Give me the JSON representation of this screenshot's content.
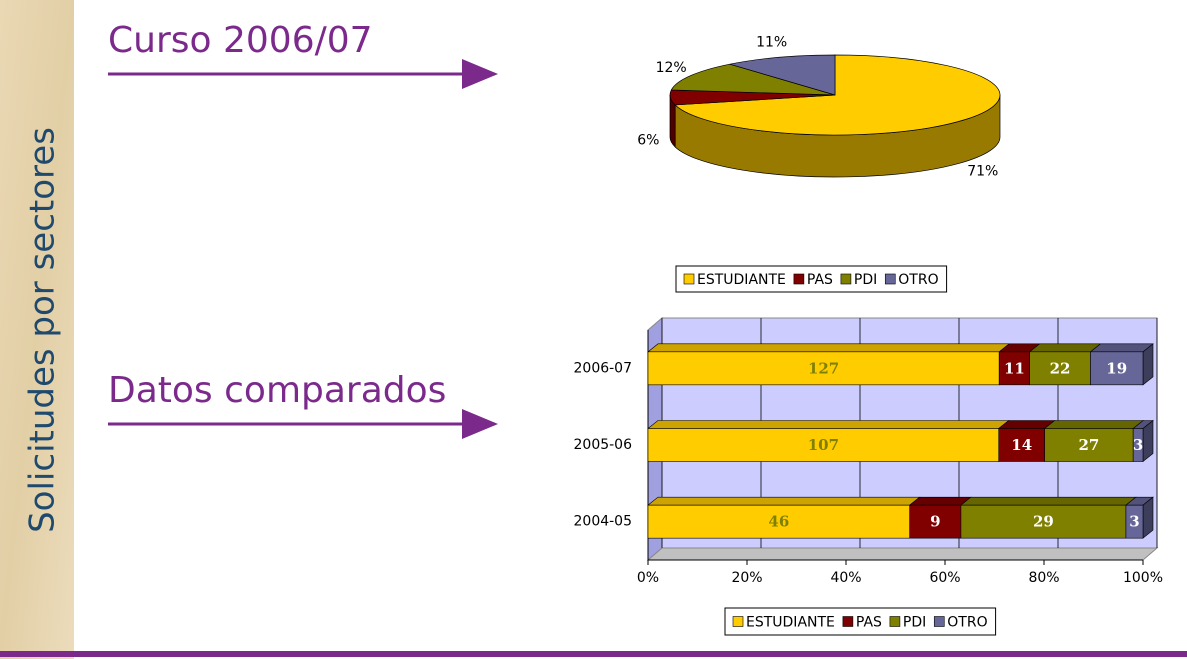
{
  "slide": {
    "title": "Solicitudes por sectores",
    "headings": [
      "Curso 2006/07",
      "Datos comparados"
    ]
  },
  "chart_data": [
    {
      "type": "pie",
      "categories": [
        "ESTUDIANTE",
        "PAS",
        "PDI",
        "OTRO"
      ],
      "values": [
        71,
        6,
        12,
        11
      ],
      "value_labels": [
        "71%",
        "6%",
        "12%",
        "11%"
      ],
      "colors": [
        "#ffcc00",
        "#800000",
        "#808000",
        "#666699"
      ],
      "legend": "bottom"
    },
    {
      "type": "bar",
      "orientation": "horizontal",
      "stacking": "percent",
      "categories": [
        "2006-07",
        "2005-06",
        "2004-05"
      ],
      "series": [
        {
          "name": "ESTUDIANTE",
          "color": "#ffcc00",
          "label_color": "#808000",
          "values": [
            127,
            107,
            46
          ]
        },
        {
          "name": "PAS",
          "color": "#800000",
          "label_color": "#ffffff",
          "values": [
            11,
            14,
            9
          ]
        },
        {
          "name": "PDI",
          "color": "#808000",
          "label_color": "#ffffff",
          "values": [
            22,
            27,
            29
          ]
        },
        {
          "name": "OTRO",
          "color": "#666699",
          "label_color": "#ffffff",
          "values": [
            19,
            3,
            3
          ]
        }
      ],
      "xlim": [
        0,
        100
      ],
      "xticks": [
        {
          "value": 0,
          "label": "0%"
        },
        {
          "value": 20,
          "label": "20%"
        },
        {
          "value": 40,
          "label": "40%"
        },
        {
          "value": 60,
          "label": "60%"
        },
        {
          "value": 80,
          "label": "80%"
        },
        {
          "value": 100,
          "label": "100%"
        }
      ],
      "grid": true,
      "legend": "bottom"
    }
  ]
}
